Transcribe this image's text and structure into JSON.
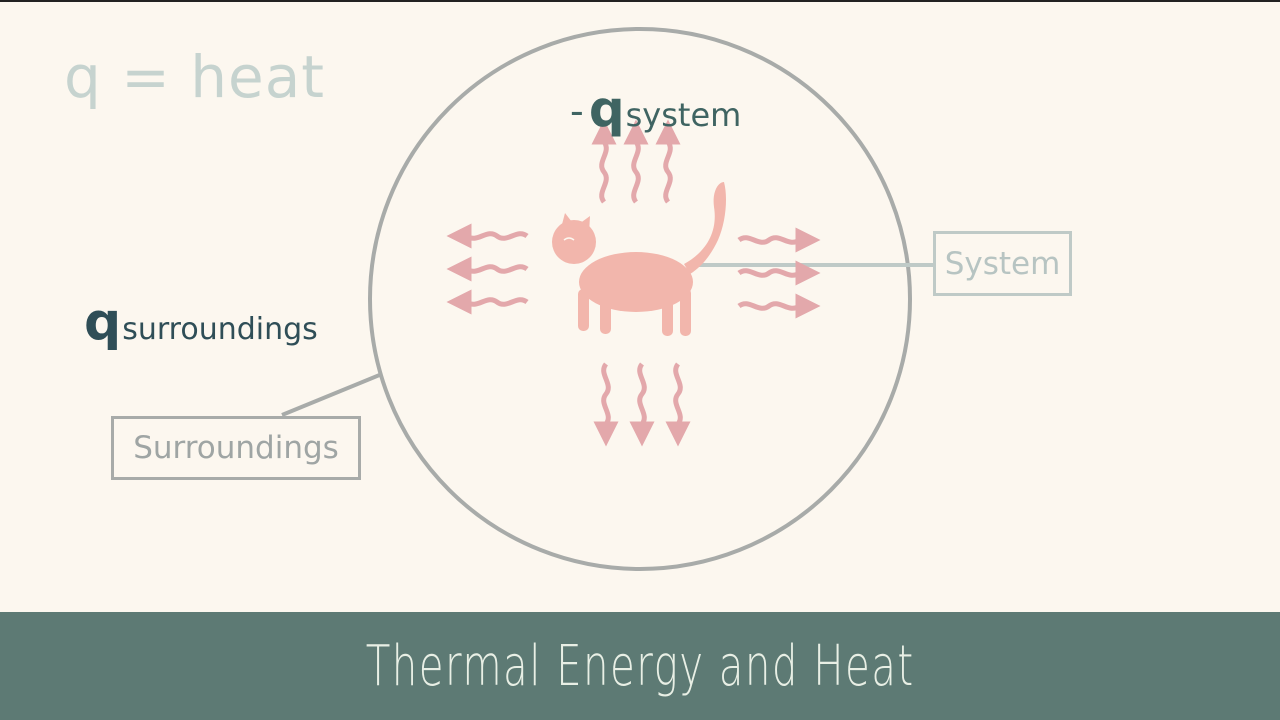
{
  "heat_definition": "q = heat",
  "system_heat_label": {
    "minus": "-",
    "q": "q",
    "subscript": "system"
  },
  "surroundings_heat_label": {
    "q": "q",
    "subscript": "surroundings"
  },
  "labels": {
    "system": "System",
    "surroundings": "Surroundings"
  },
  "banner": {
    "title": "Thermal Energy and Heat"
  },
  "colors": {
    "background": "#fcf7ef",
    "banner": "#5d7a74",
    "heat_arrows": "#e3a8ab",
    "cat": "#f2b6ac",
    "circle": "#a8aba9",
    "system_box": "#bfcac7"
  },
  "icons": {
    "center": "cat-icon"
  }
}
